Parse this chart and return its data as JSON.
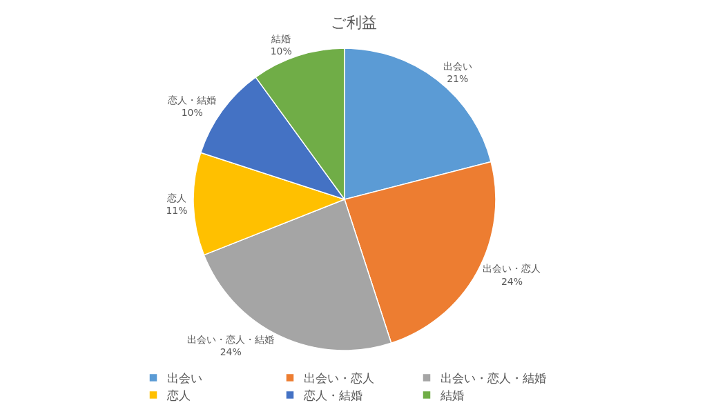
{
  "chart_data": {
    "type": "pie",
    "title": "ご利益",
    "categories": [
      "出会い",
      "出会い・恋人",
      "出会い・恋人・結婚",
      "恋人",
      "恋人・結婚",
      "結婚"
    ],
    "values": [
      21,
      24,
      24,
      11,
      10,
      10
    ],
    "value_labels": [
      "21%",
      "24%",
      "24%",
      "11%",
      "10%",
      "10%"
    ],
    "colors": [
      "#5b9bd5",
      "#ed7d31",
      "#a5a5a5",
      "#ffc000",
      "#4472c4",
      "#70ad47"
    ],
    "legend": "bottom"
  }
}
